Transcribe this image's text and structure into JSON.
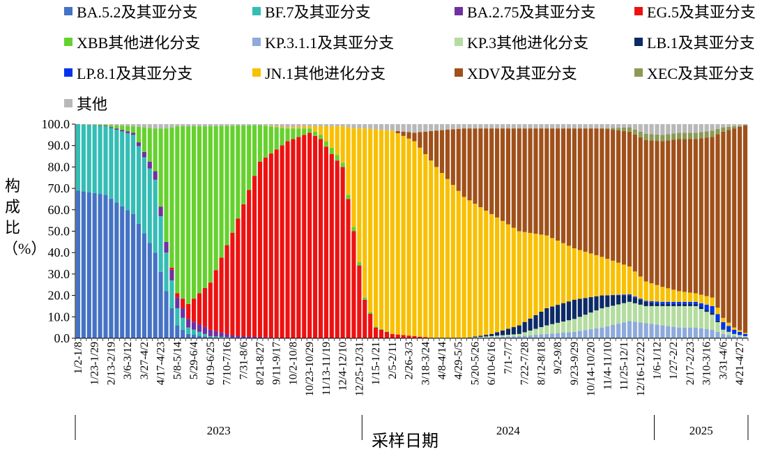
{
  "chart_data": {
    "type": "bar",
    "stacked": true,
    "xlabel": "采样日期",
    "ylabel": "构成比（%）",
    "ylim": [
      0,
      100
    ],
    "yticks": [
      "0.0",
      "10.0",
      "20.0",
      "30.0",
      "40.0",
      "50.0",
      "60.0",
      "70.0",
      "80.0",
      "90.0",
      "100.0"
    ],
    "legend_position": "top",
    "series": [
      {
        "name": "BA.5.2及其亚分支",
        "color": "#4472c4"
      },
      {
        "name": "BF.7及其亚分支",
        "color": "#34bdb5"
      },
      {
        "name": "BA.2.75及其亚分支",
        "color": "#7030a0"
      },
      {
        "name": "EG.5及其亚分支",
        "color": "#ee1111"
      },
      {
        "name": "XBB其他进化分支",
        "color": "#66d12e"
      },
      {
        "name": "KP.3.1.1及其亚分支",
        "color": "#8eaadb"
      },
      {
        "name": "KP.3其他进化分支",
        "color": "#b4dca0"
      },
      {
        "name": "LB.1及其亚分支",
        "color": "#0b2a66"
      },
      {
        "name": "LP.8.1及其亚分支",
        "color": "#0033ee"
      },
      {
        "name": "JN.1其他进化分支",
        "color": "#f8c000"
      },
      {
        "name": "XDV及其亚分支",
        "color": "#a0501a"
      },
      {
        "name": "XEC及其亚分支",
        "color": "#8b9a55"
      },
      {
        "name": "其他",
        "color": "#b8b8b8"
      }
    ],
    "tick_labels": [
      "1/2-1/8",
      "1/23-1/29",
      "2/13-2/19",
      "3/6-3/12",
      "3/27-4/2",
      "4/17-4/23",
      "5/8-5/14",
      "5/29-6/4",
      "6/19-6/25",
      "7/10-7/16",
      "7/31-8/6",
      "8/21-8/27",
      "9/11-9/17",
      "10/2-10/8",
      "10/23-10/29",
      "11/13-11/19",
      "12/4-12/10",
      "12/25-12/31",
      "1/15-1/21",
      "2/5-2/11",
      "2/26-3/3",
      "3/18-3/24",
      "4/8-4/14",
      "4/29-5/5",
      "5/20-5/26",
      "6/10-6/16",
      "7/1-7/7",
      "7/22-7/28",
      "8/12-8/18",
      "9/2-9/8",
      "9/23-9/29",
      "10/14-10/20",
      "11/4-11/10",
      "11/25-12/1",
      "12/16-12/22",
      "1/6-1/12",
      "1/27-2/2",
      "2/17-2/23",
      "3/10-3/16",
      "3/31-4/6",
      "4/21-4/27"
    ],
    "years": [
      {
        "label": "2023",
        "weeks": 52
      },
      {
        "label": "2024",
        "weeks": 53
      },
      {
        "label": "2025",
        "weeks": 17
      }
    ],
    "anchors": [
      {
        "w": 0,
        "v": [
          69,
          31,
          0,
          0,
          0,
          0,
          0,
          0,
          0,
          0,
          0,
          0,
          0
        ]
      },
      {
        "w": 5,
        "v": [
          67,
          32,
          0.3,
          0,
          0.5,
          0,
          0,
          0,
          0,
          0,
          0,
          0,
          0.2
        ]
      },
      {
        "w": 10,
        "v": [
          58,
          37,
          1,
          0,
          3,
          0,
          0,
          0,
          0,
          0,
          0,
          0,
          1
        ]
      },
      {
        "w": 14,
        "v": [
          40,
          34,
          4,
          0,
          20,
          0,
          0,
          0,
          0,
          0,
          0,
          0,
          2
        ]
      },
      {
        "w": 16,
        "v": [
          22,
          18,
          5,
          0,
          53,
          0,
          0,
          0,
          0,
          0,
          0,
          0,
          2
        ]
      },
      {
        "w": 18,
        "v": [
          6,
          8,
          5,
          2,
          78,
          0,
          0,
          0,
          0,
          0,
          0,
          0,
          1
        ]
      },
      {
        "w": 20,
        "v": [
          2,
          3,
          4,
          7,
          83,
          0,
          0,
          0,
          0,
          0,
          0,
          0,
          1
        ]
      },
      {
        "w": 24,
        "v": [
          0.5,
          0.5,
          3,
          22,
          73,
          0,
          0,
          0,
          0,
          0,
          0,
          0,
          1
        ]
      },
      {
        "w": 28,
        "v": [
          0,
          0.3,
          1,
          48,
          50,
          0,
          0,
          0,
          0,
          0,
          0,
          0,
          0.7
        ]
      },
      {
        "w": 33,
        "v": [
          0,
          0,
          0.5,
          82,
          17,
          0,
          0,
          0,
          0,
          0,
          0,
          0,
          0.5
        ]
      },
      {
        "w": 38,
        "v": [
          0,
          0,
          0,
          92,
          6,
          0,
          0,
          0,
          0,
          0.5,
          0,
          0,
          1.5
        ]
      },
      {
        "w": 42,
        "v": [
          0,
          0,
          0,
          96,
          2,
          0,
          0,
          0,
          0,
          1,
          0,
          0,
          1
        ]
      },
      {
        "w": 44,
        "v": [
          0,
          0,
          0,
          93,
          2,
          0,
          0,
          0,
          0,
          4,
          0,
          0,
          1
        ]
      },
      {
        "w": 46,
        "v": [
          0,
          0,
          0,
          86,
          3,
          0,
          0,
          0,
          0,
          10,
          0,
          0,
          1
        ]
      },
      {
        "w": 48,
        "v": [
          0,
          0,
          0,
          80,
          2,
          0,
          0,
          0,
          0,
          17,
          0,
          0,
          1
        ]
      },
      {
        "w": 50,
        "v": [
          0,
          0,
          0,
          50,
          2,
          0,
          0,
          0,
          0,
          46,
          0,
          0,
          2
        ]
      },
      {
        "w": 52,
        "v": [
          0,
          0,
          0,
          18,
          1,
          0,
          0,
          0,
          0,
          79,
          0,
          0,
          2
        ]
      },
      {
        "w": 54,
        "v": [
          0,
          0,
          0,
          5,
          0.5,
          0,
          0,
          0,
          0,
          92,
          0,
          0,
          2.5
        ]
      },
      {
        "w": 57,
        "v": [
          0,
          0,
          0,
          2,
          0,
          0,
          0,
          0,
          0,
          95,
          0,
          0,
          3
        ]
      },
      {
        "w": 61,
        "v": [
          0,
          0,
          0,
          1,
          0,
          0,
          0,
          0,
          0,
          91,
          4,
          0,
          4
        ]
      },
      {
        "w": 65,
        "v": [
          0,
          0,
          0,
          0,
          0,
          0,
          0,
          0,
          0,
          80,
          17,
          0,
          3
        ]
      },
      {
        "w": 70,
        "v": [
          0,
          0,
          0,
          0,
          0,
          0,
          0,
          0,
          0,
          66,
          32,
          0,
          2
        ]
      },
      {
        "w": 75,
        "v": [
          0,
          0,
          0,
          0,
          0,
          0.5,
          0.5,
          1,
          0,
          56,
          40,
          0,
          2
        ]
      },
      {
        "w": 80,
        "v": [
          0,
          0,
          0,
          0,
          0,
          1,
          1,
          4,
          0,
          44,
          48,
          0,
          2
        ]
      },
      {
        "w": 85,
        "v": [
          0,
          0,
          0,
          0,
          0,
          2,
          4,
          8,
          0,
          34,
          50,
          0,
          2
        ]
      },
      {
        "w": 90,
        "v": [
          0,
          0,
          0,
          0,
          0,
          3,
          6,
          9,
          0,
          24,
          56,
          0,
          2
        ]
      },
      {
        "w": 95,
        "v": [
          0,
          0,
          0,
          0,
          0,
          5,
          9,
          6,
          0,
          18,
          60,
          0,
          2
        ]
      },
      {
        "w": 100,
        "v": [
          0,
          0,
          0,
          0,
          0,
          8,
          9,
          3,
          0.5,
          13,
          63,
          2,
          1.5
        ]
      },
      {
        "w": 103,
        "v": [
          0,
          0,
          0,
          0,
          0,
          7,
          8,
          2,
          0.5,
          9,
          66,
          3,
          4.5
        ]
      },
      {
        "w": 106,
        "v": [
          0,
          0,
          0,
          0,
          0,
          6,
          9,
          1,
          1,
          7,
          68,
          3,
          5
        ]
      },
      {
        "w": 109,
        "v": [
          0,
          0,
          0,
          0,
          0,
          5,
          10,
          1,
          1,
          5,
          71,
          3,
          4
        ]
      },
      {
        "w": 112,
        "v": [
          0,
          0,
          0,
          0,
          0,
          5,
          10,
          1,
          1,
          4,
          72,
          3,
          4
        ]
      },
      {
        "w": 115,
        "v": [
          0,
          0,
          0,
          0,
          0,
          4,
          7,
          1,
          3,
          4,
          75,
          3,
          3
        ]
      },
      {
        "w": 117,
        "v": [
          0,
          0,
          0,
          0,
          0,
          2,
          2,
          0.5,
          3,
          2,
          87,
          2,
          1.5
        ]
      },
      {
        "w": 119,
        "v": [
          0,
          0,
          0,
          0,
          0,
          1,
          1,
          0,
          2,
          1,
          93,
          1,
          1
        ]
      },
      {
        "w": 121,
        "v": [
          0,
          0,
          0,
          0,
          0,
          0.5,
          0.5,
          0,
          1,
          0.5,
          97,
          0,
          0.5
        ]
      }
    ]
  }
}
